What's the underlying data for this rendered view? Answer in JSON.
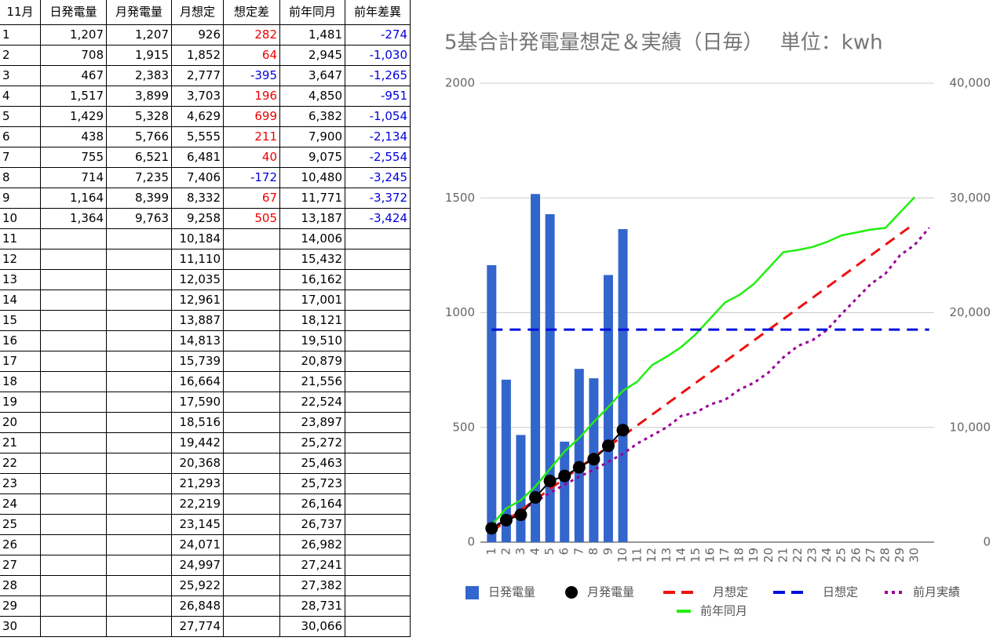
{
  "table": {
    "header": [
      "11月",
      "日発電量",
      "月発電量",
      "月想定",
      "想定差",
      "前年同月",
      "前年差異"
    ],
    "rows": [
      [
        "1",
        "1,207",
        "1,207",
        "926",
        "282",
        "1,481",
        "-274"
      ],
      [
        "2",
        "708",
        "1,915",
        "1,852",
        "64",
        "2,945",
        "-1,030"
      ],
      [
        "3",
        "467",
        "2,383",
        "2,777",
        "-395",
        "3,647",
        "-1,265"
      ],
      [
        "4",
        "1,517",
        "3,899",
        "3,703",
        "196",
        "4,850",
        "-951"
      ],
      [
        "5",
        "1,429",
        "5,328",
        "4,629",
        "699",
        "6,382",
        "-1,054"
      ],
      [
        "6",
        "438",
        "5,766",
        "5,555",
        "211",
        "7,900",
        "-2,134"
      ],
      [
        "7",
        "755",
        "6,521",
        "6,481",
        "40",
        "9,075",
        "-2,554"
      ],
      [
        "8",
        "714",
        "7,235",
        "7,406",
        "-172",
        "10,480",
        "-3,245"
      ],
      [
        "9",
        "1,164",
        "8,399",
        "8,332",
        "67",
        "11,771",
        "-3,372"
      ],
      [
        "10",
        "1,364",
        "9,763",
        "9,258",
        "505",
        "13,187",
        "-3,424"
      ],
      [
        "11",
        null,
        null,
        "10,184",
        null,
        "14,006",
        null
      ],
      [
        "12",
        null,
        null,
        "11,110",
        null,
        "15,432",
        null
      ],
      [
        "13",
        null,
        null,
        "12,035",
        null,
        "16,162",
        null
      ],
      [
        "14",
        null,
        null,
        "12,961",
        null,
        "17,001",
        null
      ],
      [
        "15",
        null,
        null,
        "13,887",
        null,
        "18,121",
        null
      ],
      [
        "16",
        null,
        null,
        "14,813",
        null,
        "19,510",
        null
      ],
      [
        "17",
        null,
        null,
        "15,739",
        null,
        "20,879",
        null
      ],
      [
        "18",
        null,
        null,
        "16,664",
        null,
        "21,556",
        null
      ],
      [
        "19",
        null,
        null,
        "17,590",
        null,
        "22,524",
        null
      ],
      [
        "20",
        null,
        null,
        "18,516",
        null,
        "23,897",
        null
      ],
      [
        "21",
        null,
        null,
        "19,442",
        null,
        "25,272",
        null
      ],
      [
        "22",
        null,
        null,
        "20,368",
        null,
        "25,463",
        null
      ],
      [
        "23",
        null,
        null,
        "21,293",
        null,
        "25,723",
        null
      ],
      [
        "24",
        null,
        null,
        "22,219",
        null,
        "26,164",
        null
      ],
      [
        "25",
        null,
        null,
        "23,145",
        null,
        "26,737",
        null
      ],
      [
        "26",
        null,
        null,
        "24,071",
        null,
        "26,982",
        null
      ],
      [
        "27",
        null,
        null,
        "24,997",
        null,
        "27,241",
        null
      ],
      [
        "28",
        null,
        null,
        "25,922",
        null,
        "27,382",
        null
      ],
      [
        "29",
        null,
        null,
        "26,848",
        null,
        "28,731",
        null
      ],
      [
        "30",
        null,
        null,
        "27,774",
        null,
        "30,066",
        null
      ]
    ]
  },
  "chart_data": {
    "type": "combo",
    "title": "5基合計発電量想定＆実績（日毎）　 単位：kwh",
    "categories": [
      "1",
      "2",
      "3",
      "4",
      "5",
      "6",
      "7",
      "8",
      "9",
      "10",
      "11",
      "12",
      "13",
      "14",
      "15",
      "16",
      "17",
      "18",
      "19",
      "20",
      "21",
      "22",
      "23",
      "24",
      "25",
      "26",
      "27",
      "28",
      "29",
      "30",
      null
    ],
    "ylim": [
      0,
      2000
    ],
    "yticks": [
      0,
      500,
      1000,
      1500,
      2000
    ],
    "y2lim": [
      0,
      40000
    ],
    "y2ticks": [
      0,
      {
        "value": 10000,
        "label": "10,000"
      },
      {
        "value": 20000,
        "label": "20,000"
      },
      {
        "value": 30000,
        "label": "30,000"
      },
      {
        "value": 40000,
        "label": "40,000"
      }
    ],
    "grid": true,
    "legend": "bottom",
    "series": [
      {
        "name": "日発電量",
        "style": "bar",
        "color": "#3366cc",
        "values": [
          1207,
          708,
          467,
          1517,
          1429,
          438,
          755,
          714,
          1164,
          1364,
          null,
          null,
          null,
          null,
          null,
          null,
          null,
          null,
          null,
          null,
          null,
          null,
          null,
          null,
          null,
          null,
          null,
          null,
          null,
          null,
          null
        ]
      },
      {
        "name": "月発電量",
        "style": "dot",
        "color": "#000000",
        "axis": "y2",
        "values": [
          1207,
          1915,
          2383,
          3899,
          5328,
          5766,
          6521,
          7235,
          8399,
          9763,
          null,
          null,
          null,
          null,
          null,
          null,
          null,
          null,
          null,
          null,
          null,
          null,
          null,
          null,
          null,
          null,
          null,
          null,
          null,
          null,
          null
        ]
      },
      {
        "name": "月想定",
        "style": "dashed",
        "color": "#ee1111",
        "axis": "y2",
        "values": [
          926,
          1852,
          2777,
          3703,
          4629,
          5555,
          6481,
          7406,
          8332,
          9258,
          10184,
          11110,
          12035,
          12961,
          13887,
          14813,
          15739,
          16664,
          17590,
          18516,
          19442,
          20368,
          21293,
          22219,
          23145,
          24071,
          24997,
          25922,
          26848,
          27774,
          null
        ]
      },
      {
        "name": "日想定",
        "style": "dashed",
        "color": "#0011dd",
        "values": [
          926,
          926,
          926,
          926,
          926,
          926,
          926,
          926,
          926,
          926,
          926,
          926,
          926,
          926,
          926,
          926,
          926,
          926,
          926,
          926,
          926,
          926,
          926,
          926,
          926,
          926,
          926,
          926,
          926,
          926,
          926
        ]
      },
      {
        "name": "前月実績",
        "style": "dotted",
        "color": "#990099",
        "axis": "y2",
        "values": [
          1200,
          2000,
          2800,
          3500,
          4300,
          5000,
          5700,
          6300,
          7000,
          7700,
          8600,
          9300,
          10000,
          11000,
          11300,
          12000,
          12400,
          13300,
          13900,
          14800,
          16100,
          17100,
          17600,
          18500,
          19900,
          21200,
          22500,
          23400,
          25000,
          25900,
          27400
        ]
      },
      {
        "name": "前年同月",
        "style": "solid",
        "color": "#22ee11",
        "axis": "y2",
        "values": [
          1481,
          2945,
          3647,
          4850,
          6382,
          7900,
          9075,
          10480,
          11771,
          13187,
          14006,
          15432,
          16162,
          17001,
          18121,
          19510,
          20879,
          21556,
          22524,
          23897,
          25272,
          25463,
          25723,
          26164,
          26737,
          26982,
          27241,
          27382,
          28731,
          30066,
          null
        ]
      }
    ]
  }
}
